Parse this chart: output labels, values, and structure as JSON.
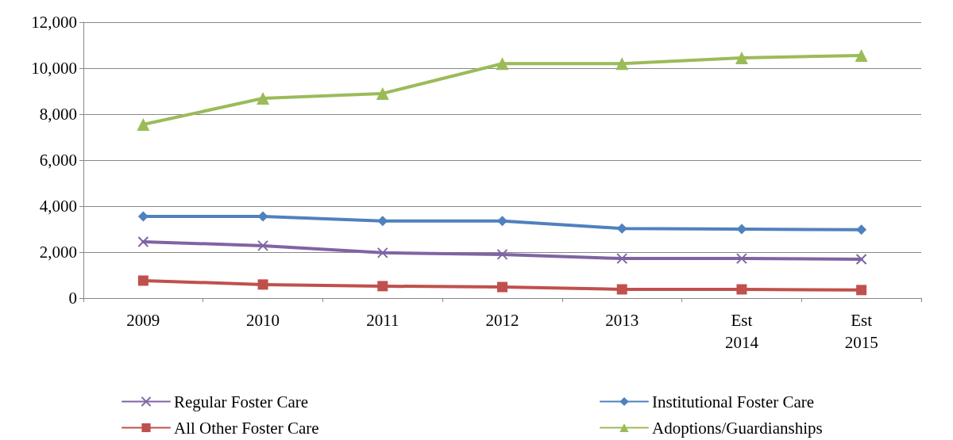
{
  "chart_data": {
    "type": "line",
    "categories": [
      "2009",
      "2010",
      "2011",
      "2012",
      "2013",
      "Est\n2014",
      "Est\n2015"
    ],
    "series": [
      {
        "name": "Regular Foster Care",
        "color": "#8064a2",
        "marker": "cross",
        "values": [
          2450,
          2280,
          1970,
          1900,
          1720,
          1720,
          1690
        ]
      },
      {
        "name": "Institutional Foster Care",
        "color": "#4f81bd",
        "marker": "diamond",
        "values": [
          3550,
          3550,
          3350,
          3350,
          3030,
          3000,
          2970
        ]
      },
      {
        "name": "All Other Foster Care",
        "color": "#c0504d",
        "marker": "square",
        "values": [
          760,
          590,
          520,
          480,
          380,
          380,
          350
        ]
      },
      {
        "name": "Adoptions/Guardianships",
        "color": "#9bbb59",
        "marker": "triangle",
        "values": [
          7550,
          8690,
          8900,
          10200,
          10200,
          10450,
          10550
        ]
      }
    ],
    "ylim": [
      0,
      12000
    ],
    "yticks": [
      0,
      {
        "value": 2000,
        "label": "2,000"
      },
      {
        "value": 4000,
        "label": "4,000"
      },
      {
        "value": 6000,
        "label": "6,000"
      },
      {
        "value": 8000,
        "label": "8,000"
      },
      {
        "value": 10000,
        "label": "10,000"
      },
      {
        "value": 12000,
        "label": "12,000"
      }
    ],
    "grid": "y",
    "legend": "bottom",
    "line_style": "solid"
  }
}
